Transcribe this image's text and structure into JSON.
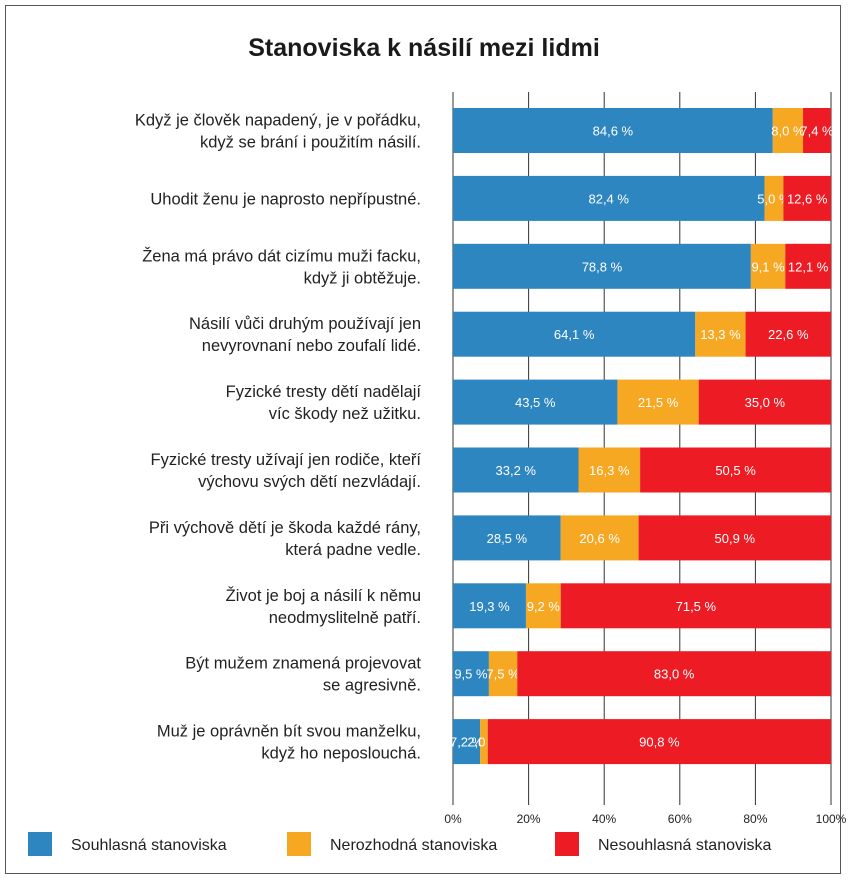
{
  "chart_data": {
    "type": "bar",
    "orientation": "horizontal",
    "stacked": true,
    "title": "Stanoviska k násilí mezi lidmi",
    "categories": [
      [
        "Když je člověk napadený, je v pořádku,",
        "když se brání i použitím násilí."
      ],
      [
        "Uhodit ženu je naprosto nepřípustné."
      ],
      [
        "Žena má právo dát cizímu muži facku,",
        "když ji obtěžuje."
      ],
      [
        "Násilí vůči druhým používají jen",
        "nevyrovnaní nebo zoufalí lidé."
      ],
      [
        "Fyzické tresty dětí nadělají",
        "víc škody než užitku."
      ],
      [
        "Fyzické tresty užívají jen rodiče, kteří",
        "výchovu svých dětí nezvládají."
      ],
      [
        "Při výchově dětí je škoda každé rány,",
        "která padne vedle."
      ],
      [
        "Život je boj a násilí k němu",
        "neodmyslitelně patří."
      ],
      [
        "Být mužem znamená projevovat",
        "se agresivně."
      ],
      [
        "Muž je oprávněn bít svou manželku,",
        "když ho neposlouchá."
      ]
    ],
    "series": [
      {
        "name": "Souhlasná stanoviska",
        "color": "#2e86c1",
        "values": [
          84.6,
          82.4,
          78.8,
          64.1,
          43.5,
          33.2,
          28.5,
          19.3,
          9.5,
          7.2
        ]
      },
      {
        "name": "Nerozhodná stanoviska",
        "color": "#f7a823",
        "values": [
          8.0,
          5.0,
          9.1,
          13.3,
          21.5,
          16.3,
          20.6,
          9.2,
          7.5,
          2.0
        ]
      },
      {
        "name": "Nesouhlasná stanoviska",
        "color": "#ed1c24",
        "values": [
          7.4,
          12.6,
          12.1,
          22.6,
          35.0,
          50.5,
          50.9,
          71.5,
          83.0,
          90.8
        ]
      }
    ],
    "value_labels": [
      [
        "84,6 %",
        "8,0 %",
        "7,4 %"
      ],
      [
        "82,4 %",
        "5,0 %",
        "12,6 %"
      ],
      [
        "78,8 %",
        "9,1 %",
        "12,1 %"
      ],
      [
        "64,1 %",
        "13,3 %",
        "22,6 %"
      ],
      [
        "43,5 %",
        "21,5 %",
        "35,0 %"
      ],
      [
        "33,2 %",
        "16,3 %",
        "50,5 %"
      ],
      [
        "28,5 %",
        "20,6 %",
        "50,9 %"
      ],
      [
        "19,3 %",
        "9,2 %",
        "71,5 %"
      ],
      [
        "9,5 %",
        "7,5 %",
        "83,0 %"
      ],
      [
        "7,2 %",
        "2,0 %",
        "90,8 %"
      ]
    ],
    "x_ticks": [
      0,
      20,
      40,
      60,
      80,
      100
    ],
    "x_tick_labels": [
      "0%",
      "20%",
      "40%",
      "60%",
      "80%",
      "100%"
    ],
    "xlim": [
      0,
      100
    ],
    "grid": true,
    "legend_position": "bottom"
  }
}
